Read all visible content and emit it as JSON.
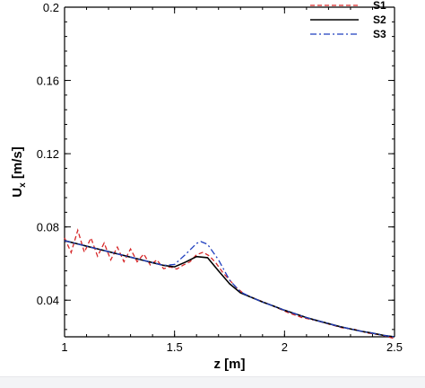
{
  "chart_data": {
    "type": "line",
    "xlabel": "z [m]",
    "ylabel": "U",
    "ylabel_sub": "x",
    "ylabel_unit": " [m/s]",
    "xlim": [
      1,
      2.5
    ],
    "ylim": [
      0.02,
      0.2
    ],
    "xticks": [
      1,
      1.5,
      2,
      2.5
    ],
    "xtick_labels": [
      "1",
      "1.5",
      "2",
      "2.5"
    ],
    "yticks": [
      0.04,
      0.08,
      0.12,
      0.16,
      0.2
    ],
    "ytick_labels": [
      "0.04",
      "0.08",
      "0.12",
      "0.16",
      "0.2"
    ],
    "grid": false,
    "legend_position": "top-right",
    "series": [
      {
        "name": "S1",
        "color": "#d62728",
        "dash": "dashed",
        "x": [
          1.0,
          1.03,
          1.06,
          1.09,
          1.12,
          1.15,
          1.18,
          1.21,
          1.24,
          1.27,
          1.3,
          1.33,
          1.36,
          1.39,
          1.42,
          1.45,
          1.48,
          1.51,
          1.54,
          1.57,
          1.6,
          1.63,
          1.66,
          1.69,
          1.72,
          1.75,
          1.78,
          1.81,
          1.84,
          1.9,
          1.96,
          2.02,
          2.08,
          2.14,
          2.2,
          2.26,
          2.32,
          2.38,
          2.44,
          2.5
        ],
        "y": [
          0.074,
          0.066,
          0.0782,
          0.0662,
          0.074,
          0.064,
          0.0712,
          0.062,
          0.069,
          0.061,
          0.068,
          0.061,
          0.0652,
          0.0592,
          0.062,
          0.0572,
          0.0582,
          0.057,
          0.0592,
          0.061,
          0.0648,
          0.0662,
          0.064,
          0.06,
          0.055,
          0.051,
          0.047,
          0.044,
          0.042,
          0.0392,
          0.0362,
          0.033,
          0.0305,
          0.029,
          0.027,
          0.025,
          0.024,
          0.022,
          0.021,
          0.019
        ]
      },
      {
        "name": "S2",
        "color": "#000000",
        "dash": "solid",
        "x": [
          1.0,
          1.05,
          1.1,
          1.15,
          1.2,
          1.25,
          1.3,
          1.35,
          1.4,
          1.45,
          1.5,
          1.55,
          1.6,
          1.65,
          1.7,
          1.75,
          1.8,
          1.85,
          1.9,
          1.95,
          2.0,
          2.05,
          2.1,
          2.15,
          2.2,
          2.25,
          2.3,
          2.35,
          2.4,
          2.45,
          2.5
        ],
        "y": [
          0.0725,
          0.071,
          0.0695,
          0.068,
          0.0665,
          0.065,
          0.0635,
          0.062,
          0.0605,
          0.059,
          0.0582,
          0.0608,
          0.0638,
          0.0632,
          0.056,
          0.049,
          0.044,
          0.0415,
          0.039,
          0.0368,
          0.0345,
          0.0325,
          0.0305,
          0.0288,
          0.0272,
          0.0256,
          0.0243,
          0.023,
          0.022,
          0.0208,
          0.02
        ]
      },
      {
        "name": "S3",
        "color": "#1f3fbf",
        "dash": "dashdot",
        "x": [
          1.0,
          1.05,
          1.1,
          1.15,
          1.2,
          1.25,
          1.3,
          1.35,
          1.4,
          1.45,
          1.5,
          1.55,
          1.6,
          1.62,
          1.65,
          1.7,
          1.75,
          1.8,
          1.85,
          1.9,
          1.95,
          2.0,
          2.05,
          2.1,
          2.15,
          2.2,
          2.25,
          2.3,
          2.35,
          2.4,
          2.45,
          2.5
        ],
        "y": [
          0.0725,
          0.071,
          0.0695,
          0.068,
          0.0665,
          0.065,
          0.0635,
          0.062,
          0.0605,
          0.059,
          0.0595,
          0.065,
          0.071,
          0.072,
          0.0705,
          0.062,
          0.051,
          0.0445,
          0.0415,
          0.039,
          0.0368,
          0.0345,
          0.0325,
          0.0305,
          0.0288,
          0.0272,
          0.0256,
          0.0243,
          0.023,
          0.022,
          0.0208,
          0.02
        ]
      }
    ]
  }
}
